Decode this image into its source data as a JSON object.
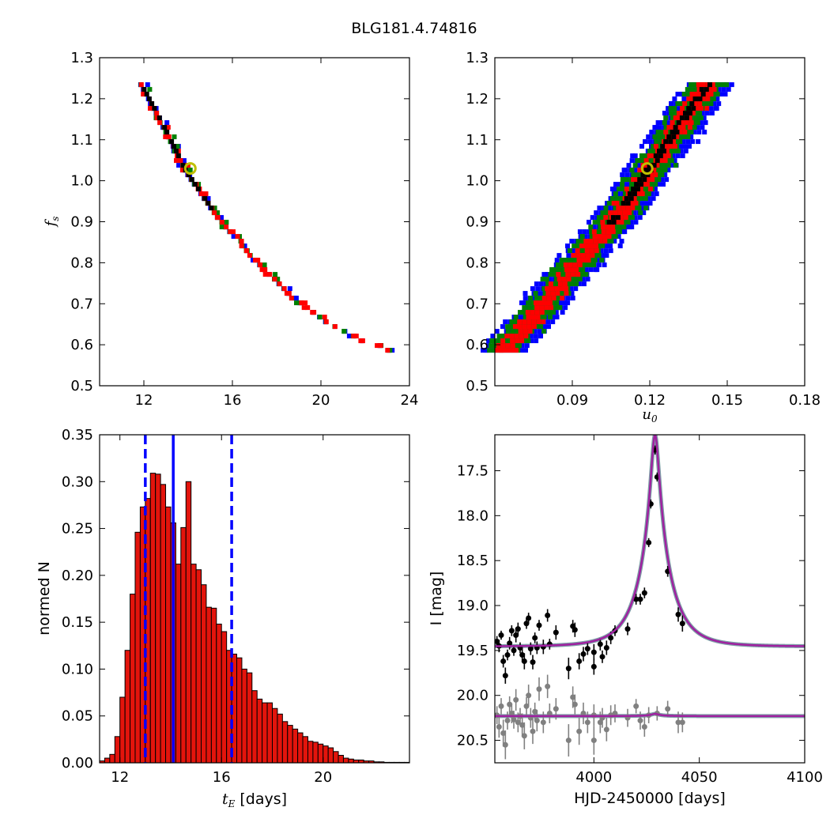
{
  "figure_title": "BLG181.4.74816",
  "colors": {
    "sigma1": "#000000",
    "sigma2": "#ff0000",
    "sigma3": "#008000",
    "sigma4": "#0000ff",
    "best_fit_marker": "#bfbf00",
    "histogram_bar": "#e3140c",
    "median_line": "#0000ff",
    "model_curve": "#a020a0",
    "data_ogle": "#000000",
    "data_moa": "#808080"
  },
  "chart_data": [
    {
      "type": "heatmap",
      "panel": "fs-vs-tE",
      "xlabel": "",
      "ylabel": "f_s",
      "xlim": [
        10,
        24
      ],
      "ylim": [
        0.5,
        1.3
      ],
      "xticks": [
        12,
        16,
        20,
        24
      ],
      "yticks": [
        0.5,
        0.6,
        0.7,
        0.8,
        0.9,
        1.0,
        1.1,
        1.2,
        1.3
      ],
      "best_fit": {
        "x": 14.1,
        "y": 1.03
      },
      "ridge": [
        [
          11.8,
          1.24
        ],
        [
          12.8,
          1.14
        ],
        [
          13.8,
          1.03
        ],
        [
          15.2,
          0.92
        ],
        [
          16.8,
          0.82
        ],
        [
          18.5,
          0.73
        ],
        [
          20.2,
          0.66
        ],
        [
          22.0,
          0.61
        ],
        [
          23.0,
          0.6
        ]
      ],
      "contour_half_widths": {
        "sigma1": 0.008,
        "sigma2": 0.022,
        "sigma3": 0.037,
        "sigma4": 0.052
      }
    },
    {
      "type": "heatmap",
      "panel": "fs-vs-u0",
      "xlabel": "u_0",
      "ylabel": "",
      "xlim": [
        0.06,
        0.18
      ],
      "ylim": [
        0.5,
        1.3
      ],
      "xticks": [
        0.09,
        0.12,
        0.15,
        0.18
      ],
      "yticks": [
        0.5,
        0.6,
        0.7,
        0.8,
        0.9,
        1.0,
        1.1,
        1.2,
        1.3
      ],
      "best_fit": {
        "x": 0.119,
        "y": 1.03
      },
      "ridge": [
        [
          0.064,
          0.6
        ],
        [
          0.078,
          0.7
        ],
        [
          0.093,
          0.82
        ],
        [
          0.107,
          0.92
        ],
        [
          0.119,
          1.03
        ],
        [
          0.131,
          1.14
        ],
        [
          0.142,
          1.24
        ]
      ],
      "contour_half_widths": {
        "sigma1": 0.0015,
        "sigma2": 0.004,
        "sigma3": 0.007,
        "sigma4": 0.0095
      }
    },
    {
      "type": "bar",
      "panel": "tE-histogram",
      "xlabel": "t_E [days]",
      "ylabel": "normed N",
      "xlim": [
        11.2,
        23.4
      ],
      "ylim": [
        0,
        0.35
      ],
      "xticks": [
        12,
        16,
        20
      ],
      "yticks": [
        0.0,
        0.05,
        0.1,
        0.15,
        0.2,
        0.25,
        0.3,
        0.35
      ],
      "bin_start": 11.2,
      "bin_width": 0.2,
      "values": [
        0.002,
        0.005,
        0.009,
        0.028,
        0.07,
        0.12,
        0.18,
        0.246,
        0.273,
        0.282,
        0.309,
        0.308,
        0.297,
        0.273,
        0.256,
        0.212,
        0.251,
        0.3,
        0.212,
        0.206,
        0.19,
        0.166,
        0.165,
        0.148,
        0.14,
        0.12,
        0.116,
        0.112,
        0.1,
        0.096,
        0.077,
        0.068,
        0.064,
        0.064,
        0.058,
        0.052,
        0.044,
        0.04,
        0.036,
        0.032,
        0.028,
        0.023,
        0.022,
        0.02,
        0.018,
        0.016,
        0.012,
        0.008,
        0.005,
        0.004,
        0.003,
        0.003,
        0.002,
        0.002,
        0.001,
        0.001,
        0.0005,
        0.0005,
        0.0005,
        0.0005,
        0.0005
      ],
      "median": 14.1,
      "lower_bound": 13.0,
      "upper_bound": 16.4
    },
    {
      "type": "scatter",
      "panel": "light-curve",
      "xlabel": "HJD-2450000 [days]",
      "ylabel": "I [mag]",
      "xlim": [
        3953,
        4100
      ],
      "ylim": [
        20.75,
        17.1
      ],
      "xticks": [
        4000,
        4050,
        4100
      ],
      "yticks": [
        17.5,
        18.0,
        18.5,
        19.0,
        19.5,
        20.0,
        20.5
      ],
      "model": {
        "t0": 4029.0,
        "tE": 14.1,
        "u0": 0.119,
        "base_upper": 19.455,
        "peak_upper": 17.1,
        "base_lower": 20.23,
        "bump_lower": 0.025
      },
      "series": [
        {
          "name": "",
          "points": [
            [
              3954,
              19.4,
              0.06
            ],
            [
              3955,
              19.45,
              0.07
            ],
            [
              3956,
              19.33,
              0.05
            ],
            [
              3957,
              19.62,
              0.07
            ],
            [
              3958,
              19.78,
              0.09
            ],
            [
              3959,
              19.55,
              0.06
            ],
            [
              3960,
              19.42,
              0.07
            ],
            [
              3961,
              19.28,
              0.06
            ],
            [
              3962,
              19.5,
              0.06
            ],
            [
              3963,
              19.33,
              0.08
            ],
            [
              3964,
              19.26,
              0.07
            ],
            [
              3965,
              19.47,
              0.06
            ],
            [
              3966,
              19.55,
              0.08
            ],
            [
              3967,
              19.62,
              0.09
            ],
            [
              3968,
              19.2,
              0.06
            ],
            [
              3969,
              19.14,
              0.06
            ],
            [
              3970,
              19.48,
              0.07
            ],
            [
              3971,
              19.63,
              0.08
            ],
            [
              3972,
              19.36,
              0.06
            ],
            [
              3973,
              19.47,
              0.07
            ],
            [
              3974,
              19.22,
              0.06
            ],
            [
              3976,
              19.46,
              0.08
            ],
            [
              3978,
              19.11,
              0.07
            ],
            [
              3979,
              19.43,
              0.06
            ],
            [
              3982,
              19.3,
              0.08
            ],
            [
              3988,
              19.7,
              0.12
            ],
            [
              3990,
              19.23,
              0.07
            ],
            [
              3991,
              19.27,
              0.08
            ],
            [
              3993,
              19.62,
              0.09
            ],
            [
              3995,
              19.54,
              0.08
            ],
            [
              3997,
              19.48,
              0.07
            ],
            [
              4000,
              19.52,
              0.09
            ],
            [
              4000,
              19.68,
              0.09
            ],
            [
              4003,
              19.43,
              0.07
            ],
            [
              4004,
              19.57,
              0.07
            ],
            [
              4006,
              19.47,
              0.08
            ],
            [
              4008,
              19.36,
              0.07
            ],
            [
              4010,
              19.28,
              0.06
            ],
            [
              4016,
              19.26,
              0.07
            ],
            [
              4020,
              18.93,
              0.06
            ],
            [
              4022,
              18.93,
              0.06
            ],
            [
              4024,
              18.86,
              0.06
            ],
            [
              4026,
              18.3,
              0.05
            ],
            [
              4027,
              17.87,
              0.05
            ],
            [
              4029,
              17.27,
              0.05
            ],
            [
              4030,
              17.57,
              0.05
            ],
            [
              4035,
              18.62,
              0.06
            ],
            [
              4040,
              19.1,
              0.08
            ],
            [
              4042,
              19.2,
              0.09
            ]
          ]
        },
        {
          "name": "",
          "points": [
            [
              3954,
              20.22,
              0.1
            ],
            [
              3955,
              20.35,
              0.12
            ],
            [
              3956,
              20.12,
              0.09
            ],
            [
              3957,
              20.42,
              0.15
            ],
            [
              3958,
              20.55,
              0.16
            ],
            [
              3959,
              20.28,
              0.1
            ],
            [
              3960,
              20.1,
              0.09
            ],
            [
              3961,
              20.2,
              0.11
            ],
            [
              3962,
              20.27,
              0.1
            ],
            [
              3963,
              20.05,
              0.12
            ],
            [
              3964,
              20.3,
              0.11
            ],
            [
              3965,
              20.23,
              0.09
            ],
            [
              3966,
              20.33,
              0.13
            ],
            [
              3967,
              20.45,
              0.15
            ],
            [
              3968,
              20.12,
              0.1
            ],
            [
              3969,
              20.0,
              0.12
            ],
            [
              3970,
              20.25,
              0.11
            ],
            [
              3971,
              20.4,
              0.14
            ],
            [
              3972,
              20.18,
              0.1
            ],
            [
              3973,
              20.28,
              0.12
            ],
            [
              3974,
              19.93,
              0.13
            ],
            [
              3976,
              20.3,
              0.12
            ],
            [
              3978,
              19.9,
              0.13
            ],
            [
              3979,
              20.2,
              0.11
            ],
            [
              3982,
              20.15,
              0.12
            ],
            [
              3988,
              20.5,
              0.18
            ],
            [
              3990,
              20.02,
              0.12
            ],
            [
              3991,
              20.1,
              0.11
            ],
            [
              3993,
              20.4,
              0.15
            ],
            [
              3995,
              20.2,
              0.12
            ],
            [
              3997,
              20.3,
              0.12
            ],
            [
              4000,
              20.22,
              0.12
            ],
            [
              4000,
              20.5,
              0.16
            ],
            [
              4003,
              20.3,
              0.12
            ],
            [
              4004,
              20.25,
              0.11
            ],
            [
              4006,
              20.38,
              0.13
            ],
            [
              4008,
              20.22,
              0.11
            ],
            [
              4010,
              20.2,
              0.1
            ],
            [
              4016,
              20.25,
              0.1
            ],
            [
              4020,
              20.12,
              0.08
            ],
            [
              4022,
              20.28,
              0.1
            ],
            [
              4024,
              20.35,
              0.11
            ],
            [
              4026,
              20.22,
              0.09
            ],
            [
              4030,
              20.2,
              0.08
            ],
            [
              4035,
              20.15,
              0.09
            ],
            [
              4040,
              20.3,
              0.12
            ],
            [
              4042,
              20.3,
              0.11
            ]
          ]
        }
      ]
    }
  ]
}
